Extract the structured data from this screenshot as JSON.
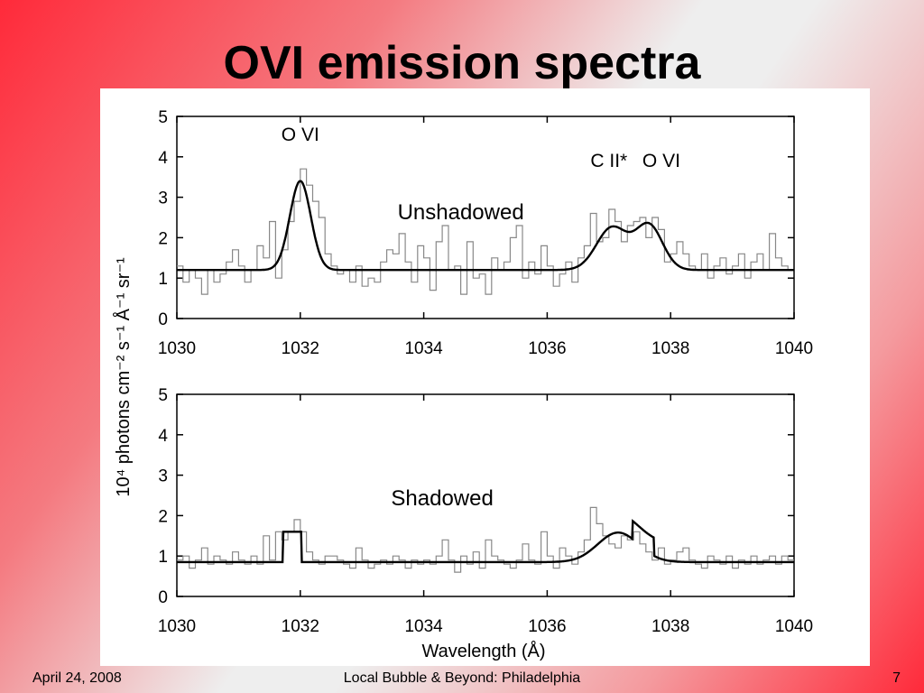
{
  "slide": {
    "title": "OVI emission spectra",
    "footer_left": "April 24, 2008",
    "footer_center": "Local Bubble & Beyond: Philadelphia",
    "footer_right": "7"
  },
  "figure": {
    "shared_ylabel": "10⁴ photons cm⁻² s⁻¹ Å⁻¹ sr⁻¹",
    "shared_xlabel": "Wavelength (Å)"
  },
  "chart_data": [
    {
      "type": "line",
      "title": "Unshadowed",
      "xlabel": "",
      "ylabel": "10⁴ photons cm⁻² s⁻¹ Å⁻¹ sr⁻¹",
      "xlim": [
        1030,
        1040
      ],
      "ylim": [
        0,
        5
      ],
      "x_ticks": [
        1030,
        1032,
        1034,
        1036,
        1038,
        1040
      ],
      "y_ticks": [
        0,
        1,
        2,
        3,
        4,
        5
      ],
      "grid": false,
      "annotations": [
        {
          "text": "O VI",
          "x": 1032.0,
          "y": 4.4
        },
        {
          "text": "C II*",
          "x": 1037.0,
          "y": 3.75
        },
        {
          "text": "O VI",
          "x": 1037.85,
          "y": 3.75
        },
        {
          "text": "Unshadowed",
          "x": 1034.6,
          "y": 2.45
        }
      ],
      "series": [
        {
          "style": "histogram",
          "color": "#888888",
          "x": [
            1030.0,
            1030.1,
            1030.2,
            1030.3,
            1030.4,
            1030.5,
            1030.6,
            1030.7,
            1030.8,
            1030.9,
            1031.0,
            1031.1,
            1031.2,
            1031.3,
            1031.4,
            1031.5,
            1031.6,
            1031.7,
            1031.8,
            1031.9,
            1032.0,
            1032.1,
            1032.2,
            1032.3,
            1032.4,
            1032.5,
            1032.6,
            1032.7,
            1032.8,
            1032.9,
            1033.0,
            1033.1,
            1033.2,
            1033.3,
            1033.4,
            1033.5,
            1033.6,
            1033.7,
            1033.8,
            1033.9,
            1034.0,
            1034.1,
            1034.2,
            1034.3,
            1034.4,
            1034.5,
            1034.6,
            1034.7,
            1034.8,
            1034.9,
            1035.0,
            1035.1,
            1035.2,
            1035.3,
            1035.4,
            1035.5,
            1035.6,
            1035.7,
            1035.8,
            1035.9,
            1036.0,
            1036.1,
            1036.2,
            1036.3,
            1036.4,
            1036.5,
            1036.6,
            1036.7,
            1036.8,
            1036.9,
            1037.0,
            1037.1,
            1037.2,
            1037.3,
            1037.4,
            1037.5,
            1037.6,
            1037.7,
            1037.8,
            1037.9,
            1038.0,
            1038.1,
            1038.2,
            1038.3,
            1038.4,
            1038.5,
            1038.6,
            1038.7,
            1038.8,
            1038.9,
            1039.0,
            1039.1,
            1039.2,
            1039.3,
            1039.4,
            1039.5,
            1039.6,
            1039.7,
            1039.8,
            1039.9
          ],
          "values": [
            1.3,
            0.9,
            1.2,
            1.0,
            0.6,
            1.2,
            0.9,
            1.1,
            1.4,
            1.7,
            1.3,
            0.9,
            1.2,
            1.8,
            1.5,
            2.4,
            1.0,
            1.7,
            2.4,
            2.9,
            3.7,
            3.3,
            2.9,
            2.5,
            1.6,
            1.3,
            1.1,
            1.2,
            0.9,
            1.3,
            0.8,
            1.0,
            0.9,
            1.4,
            1.7,
            1.6,
            2.1,
            1.4,
            0.9,
            1.8,
            1.5,
            0.7,
            1.9,
            2.3,
            1.2,
            1.3,
            0.6,
            1.9,
            1.0,
            1.1,
            0.6,
            1.5,
            1.2,
            1.4,
            2.0,
            2.3,
            1.0,
            1.4,
            1.1,
            1.8,
            1.3,
            0.8,
            1.1,
            1.4,
            0.9,
            1.5,
            1.8,
            2.6,
            1.9,
            2.0,
            2.7,
            2.4,
            1.9,
            2.3,
            2.4,
            2.5,
            2.0,
            2.5,
            2.2,
            1.4,
            1.6,
            1.9,
            1.6,
            1.3,
            1.2,
            1.6,
            1.0,
            1.3,
            1.5,
            1.1,
            1.3,
            1.6,
            1.0,
            1.4,
            1.6,
            1.2,
            2.1,
            1.5,
            1.3,
            1.2
          ]
        },
        {
          "style": "model",
          "color": "#000000",
          "baseline": 1.2,
          "gaussians": [
            {
              "center": 1032.0,
              "amplitude": 2.2,
              "sigma": 0.17
            },
            {
              "center": 1037.05,
              "amplitude": 1.05,
              "sigma": 0.25
            },
            {
              "center": 1037.65,
              "amplitude": 1.1,
              "sigma": 0.22
            }
          ]
        }
      ]
    },
    {
      "type": "line",
      "title": "Shadowed",
      "xlabel": "Wavelength (Å)",
      "ylabel": "10⁴ photons cm⁻² s⁻¹ Å⁻¹ sr⁻¹",
      "xlim": [
        1030,
        1040
      ],
      "ylim": [
        0,
        5
      ],
      "x_ticks": [
        1030,
        1032,
        1034,
        1036,
        1038,
        1040
      ],
      "y_ticks": [
        0,
        1,
        2,
        3,
        4,
        5
      ],
      "grid": false,
      "annotations": [
        {
          "text": "Shadowed",
          "x": 1034.3,
          "y": 2.25
        }
      ],
      "series": [
        {
          "style": "histogram",
          "color": "#888888",
          "x": [
            1030.0,
            1030.1,
            1030.2,
            1030.3,
            1030.4,
            1030.5,
            1030.6,
            1030.7,
            1030.8,
            1030.9,
            1031.0,
            1031.1,
            1031.2,
            1031.3,
            1031.4,
            1031.5,
            1031.6,
            1031.7,
            1031.8,
            1031.9,
            1032.0,
            1032.1,
            1032.2,
            1032.3,
            1032.4,
            1032.5,
            1032.6,
            1032.7,
            1032.8,
            1032.9,
            1033.0,
            1033.1,
            1033.2,
            1033.3,
            1033.4,
            1033.5,
            1033.6,
            1033.7,
            1033.8,
            1033.9,
            1034.0,
            1034.1,
            1034.2,
            1034.3,
            1034.4,
            1034.5,
            1034.6,
            1034.7,
            1034.8,
            1034.9,
            1035.0,
            1035.1,
            1035.2,
            1035.3,
            1035.4,
            1035.5,
            1035.6,
            1035.7,
            1035.8,
            1035.9,
            1036.0,
            1036.1,
            1036.2,
            1036.3,
            1036.4,
            1036.5,
            1036.6,
            1036.7,
            1036.8,
            1036.9,
            1037.0,
            1037.1,
            1037.2,
            1037.3,
            1037.4,
            1037.5,
            1037.6,
            1037.7,
            1037.8,
            1037.9,
            1038.0,
            1038.1,
            1038.2,
            1038.3,
            1038.4,
            1038.5,
            1038.6,
            1038.7,
            1038.8,
            1038.9,
            1039.0,
            1039.1,
            1039.2,
            1039.3,
            1039.4,
            1039.5,
            1039.6,
            1039.7,
            1039.8,
            1039.9
          ],
          "values": [
            0.9,
            1.0,
            0.7,
            0.9,
            1.2,
            0.8,
            1.0,
            0.9,
            0.8,
            1.1,
            0.9,
            0.8,
            1.0,
            0.8,
            1.5,
            0.9,
            1.6,
            1.4,
            1.6,
            1.9,
            1.6,
            1.1,
            0.9,
            0.8,
            1.0,
            1.0,
            0.9,
            0.8,
            0.7,
            1.2,
            0.9,
            0.7,
            0.8,
            0.9,
            0.8,
            1.0,
            0.9,
            0.7,
            0.9,
            0.8,
            0.9,
            0.8,
            1.0,
            1.4,
            0.9,
            0.6,
            1.0,
            0.8,
            1.1,
            0.7,
            1.4,
            1.0,
            0.9,
            0.8,
            0.7,
            0.9,
            1.3,
            0.9,
            0.8,
            1.6,
            1.0,
            0.7,
            1.2,
            1.0,
            0.8,
            1.1,
            1.4,
            2.2,
            1.8,
            1.5,
            1.3,
            1.2,
            1.5,
            1.4,
            1.6,
            1.3,
            1.1,
            0.9,
            1.2,
            0.8,
            0.9,
            1.1,
            1.2,
            0.9,
            0.8,
            0.7,
            1.0,
            0.9,
            0.8,
            1.0,
            0.7,
            0.9,
            0.8,
            1.0,
            0.8,
            0.9,
            1.0,
            0.8,
            1.0,
            0.9
          ]
        },
        {
          "style": "model",
          "color": "#000000",
          "baseline": 0.85,
          "gaussians": [
            {
              "center": 1037.15,
              "amplitude": 0.73,
              "sigma": 0.33
            }
          ],
          "boxes": [
            {
              "x0": 1031.72,
              "x1": 1032.02,
              "amplitude": 0.75
            },
            {
              "x0": 1037.38,
              "x1": 1037.73,
              "amplitude": 0.45
            }
          ]
        }
      ]
    }
  ]
}
